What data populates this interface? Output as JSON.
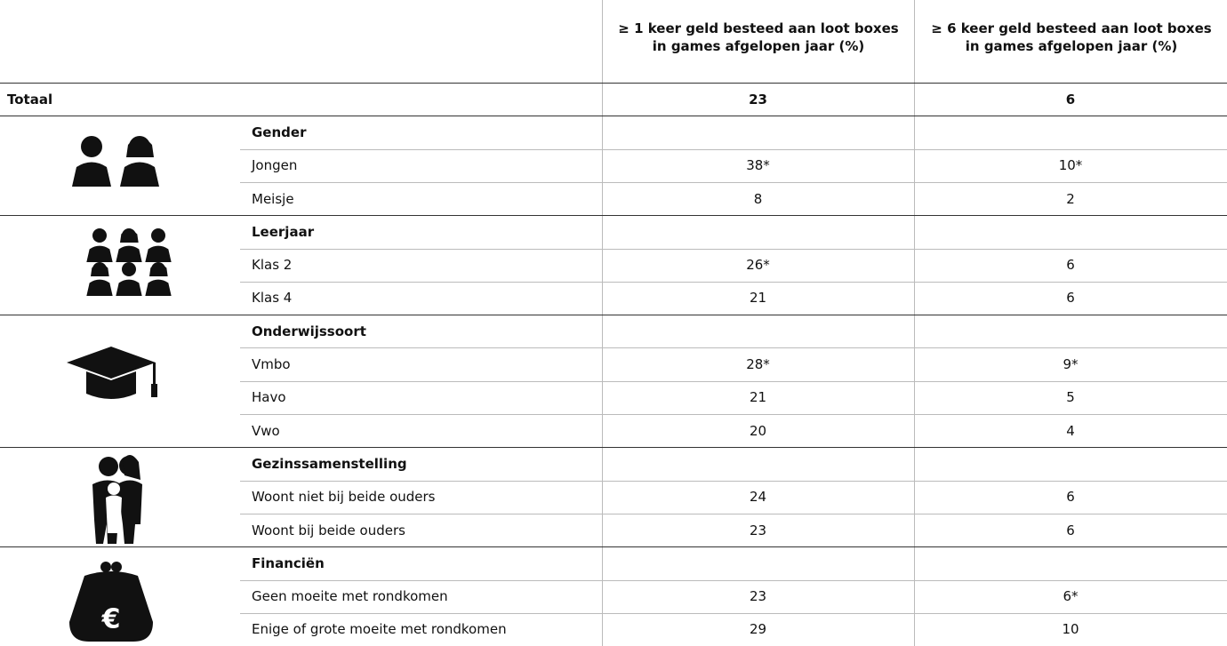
{
  "header": {
    "columns": [
      "≥ 1 keer geld besteed aan loot boxes in games afgelopen jaar (%)",
      "≥ 6 keer geld besteed aan loot boxes in games afgelopen jaar (%)"
    ]
  },
  "total": {
    "label": "Totaal",
    "values": [
      23,
      6
    ]
  },
  "groups": [
    {
      "title": "Gender",
      "rows": [
        {
          "label": "Jongen",
          "values": [
            "38*",
            "10*"
          ]
        },
        {
          "label": "Meisje",
          "values": [
            8,
            2
          ]
        }
      ]
    },
    {
      "title": "Leerjaar",
      "rows": [
        {
          "label": "Klas 2",
          "values": [
            "26*",
            6
          ]
        },
        {
          "label": "Klas 4",
          "values": [
            21,
            6
          ]
        }
      ]
    },
    {
      "title": "Onderwijssoort",
      "rows": [
        {
          "label": "Vmbo",
          "values": [
            "28*",
            "9*"
          ]
        },
        {
          "label": "Havo",
          "values": [
            21,
            5
          ]
        },
        {
          "label": "Vwo",
          "values": [
            20,
            4
          ]
        }
      ]
    },
    {
      "title": "Gezinssamenstelling",
      "rows": [
        {
          "label": "Woont niet bij beide ouders",
          "values": [
            24,
            6
          ]
        },
        {
          "label": "Woont bij beide ouders",
          "values": [
            23,
            6
          ]
        }
      ]
    },
    {
      "title": "Financiën",
      "rows": [
        {
          "label": "Geen moeite met rondkomen",
          "values": [
            23,
            "6*"
          ]
        },
        {
          "label": "Enige of grote moeite met rondkomen",
          "values": [
            29,
            10
          ]
        }
      ]
    }
  ]
}
